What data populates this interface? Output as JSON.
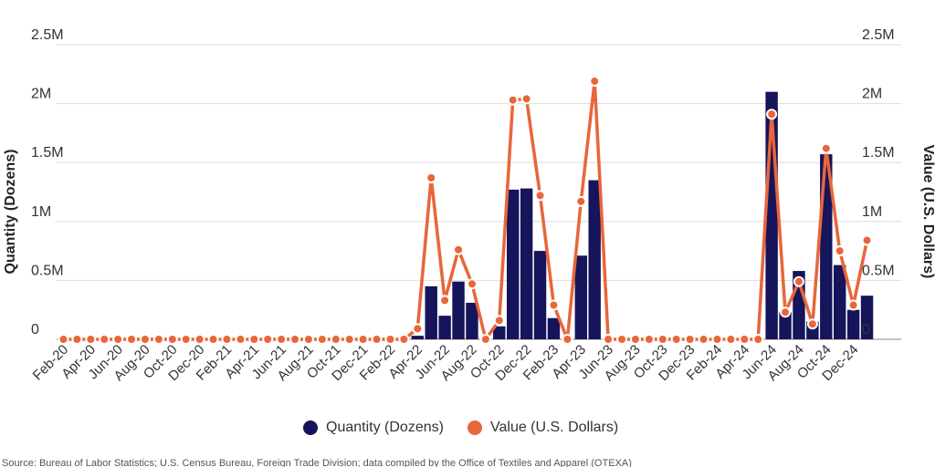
{
  "chart_data": {
    "type": "bar+line",
    "x_labels": [
      "Feb-20",
      "Mar-20",
      "Apr-20",
      "May-20",
      "Jun-20",
      "Jul-20",
      "Aug-20",
      "Sep-20",
      "Oct-20",
      "Nov-20",
      "Dec-20",
      "Jan-21",
      "Feb-21",
      "Mar-21",
      "Apr-21",
      "May-21",
      "Jun-21",
      "Jul-21",
      "Aug-21",
      "Sep-21",
      "Oct-21",
      "Nov-21",
      "Dec-21",
      "Jan-22",
      "Feb-22",
      "Mar-22",
      "Apr-22",
      "May-22",
      "Jun-22",
      "Jul-22",
      "Aug-22",
      "Sep-22",
      "Oct-22",
      "Nov-22",
      "Dec-22",
      "Jan-23",
      "Feb-23",
      "Mar-23",
      "Apr-23",
      "May-23",
      "Jun-23",
      "Jul-23",
      "Aug-23",
      "Sep-23",
      "Oct-23",
      "Nov-23",
      "Dec-23",
      "Jan-24",
      "Feb-24",
      "Mar-24",
      "Apr-24",
      "May-24",
      "Jun-24",
      "Jul-24",
      "Aug-24",
      "Sep-24",
      "Oct-24",
      "Nov-24",
      "Dec-24",
      "Jan-25"
    ],
    "x_tick_labels": [
      "Feb-20",
      "Apr-20",
      "Jun-20",
      "Aug-20",
      "Oct-20",
      "Dec-20",
      "Feb-21",
      "Apr-21",
      "Jun-21",
      "Aug-21",
      "Oct-21",
      "Dec-21",
      "Feb-22",
      "Apr-22",
      "Jun-22",
      "Aug-22",
      "Oct-22",
      "Dec-22",
      "Feb-23",
      "Apr-23",
      "Jun-23",
      "Aug-23",
      "Oct-23",
      "Dec-23",
      "Feb-24",
      "Apr-24",
      "Jun-24",
      "Aug-24",
      "Oct-24",
      "Dec-24"
    ],
    "y_tick_labels": [
      "0",
      "0.5M",
      "1M",
      "1.5M",
      "2M",
      "2.5M"
    ],
    "ylim": [
      0,
      2500000
    ],
    "y2lim": [
      0,
      2500000
    ],
    "ylabel": "Quantity (Dozens)",
    "y2label": "Value (U.S. Dollars)",
    "legend_position": "bottom",
    "grid": true,
    "series": [
      {
        "name": "Quantity (Dozens)",
        "type": "bar",
        "axis": "left",
        "color": "#16145a",
        "values": [
          0,
          0,
          0,
          0,
          0,
          0,
          0,
          0,
          0,
          0,
          0,
          0,
          0,
          0,
          0,
          0,
          0,
          0,
          0,
          0,
          0,
          0,
          0,
          0,
          0,
          0,
          30000,
          450000,
          200000,
          490000,
          310000,
          0,
          110000,
          1270000,
          1280000,
          750000,
          180000,
          0,
          710000,
          1350000,
          0,
          0,
          0,
          0,
          0,
          0,
          0,
          0,
          0,
          0,
          0,
          0,
          2100000,
          230000,
          580000,
          150000,
          1570000,
          630000,
          250000,
          370000
        ]
      },
      {
        "name": "Value (U.S. Dollars)",
        "type": "line",
        "axis": "right",
        "color": "#e8663a",
        "values": [
          0,
          0,
          0,
          0,
          0,
          0,
          0,
          0,
          0,
          0,
          0,
          0,
          0,
          0,
          0,
          0,
          0,
          0,
          0,
          0,
          0,
          0,
          0,
          0,
          0,
          0,
          90000,
          1370000,
          330000,
          760000,
          470000,
          0,
          160000,
          2030000,
          2040000,
          1220000,
          290000,
          0,
          1170000,
          2190000,
          0,
          0,
          0,
          0,
          0,
          0,
          0,
          0,
          0,
          0,
          0,
          0,
          1910000,
          230000,
          490000,
          130000,
          1620000,
          750000,
          290000,
          840000
        ]
      }
    ]
  },
  "source_note": "Source: Bureau of Labor Statistics; U.S. Census Bureau, Foreign Trade Division; data compiled by the Office of Textiles and Apparel (OTEXA)"
}
